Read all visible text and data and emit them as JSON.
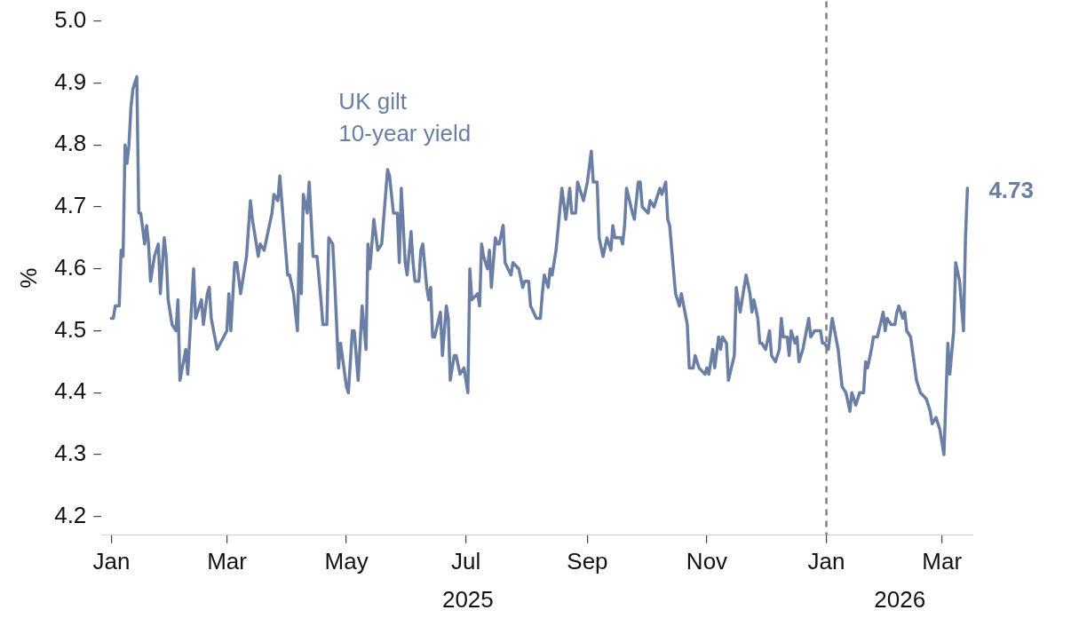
{
  "chart_data": {
    "type": "line",
    "ylabel": "%",
    "marker": "none",
    "xlim": [
      "2024-12-27",
      "2026-03-17"
    ],
    "ylim": [
      4.17,
      5.0
    ],
    "yticks": [
      4.2,
      4.3,
      4.4,
      4.5,
      4.6,
      4.7,
      4.8,
      4.9,
      {
        "value": 5,
        "label": "5.0"
      }
    ],
    "xticks": [
      {
        "value": "2025-01-01",
        "label": "Jan"
      },
      {
        "value": "2025-03-01",
        "label": "Mar"
      },
      {
        "value": "2025-05-01",
        "label": "May"
      },
      {
        "value": "2025-07-01",
        "label": "Jul"
      },
      {
        "value": "2025-09-01",
        "label": "Sep"
      },
      {
        "value": "2025-11-01",
        "label": "Nov"
      },
      {
        "value": "2026-01-01",
        "label": "Jan"
      },
      {
        "value": "2026-03-01",
        "label": "Mar"
      }
    ],
    "ref_lines": [
      {
        "axis": "x",
        "value": "2026-01-01",
        "color": "#808080",
        "line_style": "dashed"
      }
    ],
    "annotations": [
      "2025",
      "2026",
      {
        "text": "4.73",
        "x": "2026-03-14",
        "y": 4.73
      }
    ],
    "series": [
      {
        "name": "UK gilt\n10-year yield",
        "color": "#6a7fa3",
        "x": [
          "2025-01-01",
          "2025-01-02",
          "2025-01-03",
          "2025-01-05",
          "2025-01-06",
          "2025-01-07",
          "2025-01-08",
          "2025-01-09",
          "2025-01-10",
          "2025-01-11",
          "2025-01-12",
          "2025-01-14",
          "2025-01-15",
          "2025-01-16",
          "2025-01-18",
          "2025-01-19",
          "2025-01-20",
          "2025-01-21",
          "2025-01-23",
          "2025-01-25",
          "2025-01-26",
          "2025-01-28",
          "2025-01-29",
          "2025-01-30",
          "2025-02-01",
          "2025-02-03",
          "2025-02-04",
          "2025-02-05",
          "2025-02-08",
          "2025-02-09",
          "2025-02-12",
          "2025-02-13",
          "2025-02-16",
          "2025-02-17",
          "2025-02-19",
          "2025-02-20",
          "2025-02-21",
          "2025-02-24",
          "2025-03-01",
          "2025-03-02",
          "2025-03-03",
          "2025-03-05",
          "2025-03-06",
          "2025-03-08",
          "2025-03-11",
          "2025-03-13",
          "2025-03-14",
          "2025-03-17",
          "2025-03-18",
          "2025-03-20",
          "2025-03-22",
          "2025-03-24",
          "2025-03-25",
          "2025-03-27",
          "2025-03-28",
          "2025-04-01",
          "2025-04-02",
          "2025-04-04",
          "2025-04-06",
          "2025-04-07",
          "2025-04-08",
          "2025-04-09",
          "2025-04-11",
          "2025-04-12",
          "2025-04-14",
          "2025-04-16",
          "2025-04-18",
          "2025-04-19",
          "2025-04-21",
          "2025-04-22",
          "2025-04-24",
          "2025-04-25",
          "2025-04-27",
          "2025-04-28",
          "2025-05-01",
          "2025-05-02",
          "2025-05-04",
          "2025-05-05",
          "2025-05-07",
          "2025-05-09",
          "2025-05-11",
          "2025-05-12",
          "2025-05-13",
          "2025-05-15",
          "2025-05-17",
          "2025-05-19",
          "2025-05-20",
          "2025-05-22",
          "2025-05-23",
          "2025-05-25",
          "2025-05-27",
          "2025-05-28",
          "2025-05-29",
          "2025-05-31",
          "2025-06-01",
          "2025-06-03",
          "2025-06-04",
          "2025-06-05",
          "2025-06-07",
          "2025-06-08",
          "2025-06-09",
          "2025-06-11",
          "2025-06-12",
          "2025-06-13",
          "2025-06-14",
          "2025-06-15",
          "2025-06-18",
          "2025-06-19",
          "2025-06-21",
          "2025-06-22",
          "2025-06-23",
          "2025-06-25",
          "2025-06-26",
          "2025-06-28",
          "2025-06-30",
          "2025-07-02",
          "2025-07-03",
          "2025-07-04",
          "2025-07-07",
          "2025-07-08",
          "2025-07-09",
          "2025-07-10",
          "2025-07-12",
          "2025-07-13",
          "2025-07-14",
          "2025-07-16",
          "2025-07-17",
          "2025-07-18",
          "2025-07-20",
          "2025-07-21",
          "2025-07-24",
          "2025-07-25",
          "2025-07-28",
          "2025-07-30",
          "2025-07-31",
          "2025-08-02",
          "2025-08-03",
          "2025-08-06",
          "2025-08-08",
          "2025-08-09",
          "2025-08-10",
          "2025-08-12",
          "2025-08-13",
          "2025-08-14",
          "2025-08-16",
          "2025-08-19",
          "2025-08-21",
          "2025-08-23",
          "2025-08-24",
          "2025-08-26",
          "2025-08-27",
          "2025-08-30",
          "2025-09-01",
          "2025-09-03",
          "2025-09-04",
          "2025-09-06",
          "2025-09-07",
          "2025-09-09",
          "2025-09-11",
          "2025-09-13",
          "2025-09-14",
          "2025-09-15",
          "2025-09-18",
          "2025-09-19",
          "2025-09-20",
          "2025-09-21",
          "2025-09-24",
          "2025-09-25",
          "2025-09-27",
          "2025-09-28",
          "2025-09-29",
          "2025-10-02",
          "2025-10-03",
          "2025-10-05",
          "2025-10-08",
          "2025-10-09",
          "2025-10-11",
          "2025-10-12",
          "2025-10-13",
          "2025-10-16",
          "2025-10-18",
          "2025-10-19",
          "2025-10-22",
          "2025-10-23",
          "2025-10-25",
          "2025-10-26",
          "2025-10-28",
          "2025-10-31",
          "2025-11-01",
          "2025-11-02",
          "2025-11-04",
          "2025-11-05",
          "2025-11-07",
          "2025-11-08",
          "2025-11-09",
          "2025-11-11",
          "2025-11-12",
          "2025-11-15",
          "2025-11-16",
          "2025-11-18",
          "2025-11-19",
          "2025-11-21",
          "2025-11-23",
          "2025-11-24",
          "2025-11-25",
          "2025-11-27",
          "2025-11-28",
          "2025-11-29",
          "2025-12-01",
          "2025-12-03",
          "2025-12-04",
          "2025-12-06",
          "2025-12-08",
          "2025-12-09",
          "2025-12-10",
          "2025-12-12",
          "2025-12-13",
          "2025-12-14",
          "2025-12-16",
          "2025-12-17",
          "2025-12-18",
          "2025-12-20",
          "2025-12-23",
          "2025-12-24",
          "2025-12-26",
          "2025-12-29",
          "2025-12-30",
          "2025-12-31",
          "2026-01-02",
          "2026-01-04",
          "2026-01-07",
          "2026-01-09",
          "2026-01-11",
          "2026-01-13",
          "2026-01-14",
          "2026-01-16",
          "2026-01-18",
          "2026-01-20",
          "2026-01-21",
          "2026-01-22",
          "2026-01-24",
          "2026-01-25",
          "2026-01-27",
          "2026-01-30",
          "2026-01-31",
          "2026-02-01",
          "2026-02-03",
          "2026-02-05",
          "2026-02-06",
          "2026-02-07",
          "2026-02-09",
          "2026-02-10",
          "2026-02-11",
          "2026-02-13",
          "2026-02-16",
          "2026-02-17",
          "2026-02-18",
          "2026-02-21",
          "2026-02-23",
          "2026-02-24",
          "2026-02-26",
          "2026-02-28",
          "2026-03-02",
          "2026-03-04",
          "2026-03-05",
          "2026-03-07",
          "2026-03-08",
          "2026-03-10",
          "2026-03-12",
          "2026-03-13",
          "2026-03-14"
        ],
        "values": [
          4.52,
          4.52,
          4.54,
          4.54,
          4.63,
          4.62,
          4.8,
          4.77,
          4.8,
          4.86,
          4.89,
          4.91,
          4.69,
          4.69,
          4.64,
          4.67,
          4.64,
          4.58,
          4.62,
          4.64,
          4.56,
          4.65,
          4.62,
          4.55,
          4.51,
          4.5,
          4.55,
          4.42,
          4.47,
          4.43,
          4.6,
          4.52,
          4.55,
          4.51,
          4.56,
          4.57,
          4.52,
          4.47,
          4.5,
          4.56,
          4.5,
          4.61,
          4.61,
          4.56,
          4.62,
          4.71,
          4.68,
          4.62,
          4.64,
          4.63,
          4.66,
          4.69,
          4.72,
          4.71,
          4.75,
          4.59,
          4.59,
          4.56,
          4.5,
          4.64,
          4.56,
          4.72,
          4.69,
          4.74,
          4.62,
          4.62,
          4.55,
          4.51,
          4.51,
          4.65,
          4.64,
          4.58,
          4.44,
          4.48,
          4.41,
          4.4,
          4.5,
          4.5,
          4.42,
          4.54,
          4.47,
          4.64,
          4.6,
          4.68,
          4.63,
          4.64,
          4.68,
          4.76,
          4.75,
          4.69,
          4.69,
          4.61,
          4.73,
          4.61,
          4.59,
          4.66,
          4.61,
          4.58,
          4.58,
          4.63,
          4.64,
          4.57,
          4.55,
          4.57,
          4.49,
          4.49,
          4.53,
          4.46,
          4.54,
          4.52,
          4.42,
          4.46,
          4.46,
          4.43,
          4.44,
          4.4,
          4.6,
          4.55,
          4.56,
          4.54,
          4.64,
          4.62,
          4.6,
          4.63,
          4.57,
          4.65,
          4.64,
          4.64,
          4.67,
          4.61,
          4.59,
          4.61,
          4.6,
          4.57,
          4.58,
          4.58,
          4.54,
          4.52,
          4.52,
          4.56,
          4.59,
          4.57,
          4.6,
          4.59,
          4.63,
          4.73,
          4.68,
          4.73,
          4.69,
          4.69,
          4.74,
          4.71,
          4.74,
          4.79,
          4.74,
          4.74,
          4.65,
          4.62,
          4.65,
          4.63,
          4.67,
          4.65,
          4.65,
          4.64,
          4.67,
          4.73,
          4.69,
          4.68,
          4.74,
          4.74,
          4.7,
          4.69,
          4.71,
          4.7,
          4.73,
          4.72,
          4.74,
          4.68,
          4.67,
          4.56,
          4.54,
          4.56,
          4.51,
          4.44,
          4.44,
          4.46,
          4.44,
          4.43,
          4.44,
          4.43,
          4.47,
          4.44,
          4.49,
          4.47,
          4.49,
          4.48,
          4.42,
          4.46,
          4.57,
          4.53,
          4.55,
          4.59,
          4.56,
          4.53,
          4.55,
          4.52,
          4.48,
          4.48,
          4.47,
          4.5,
          4.46,
          4.45,
          4.47,
          4.52,
          4.49,
          4.49,
          4.46,
          4.5,
          4.48,
          4.49,
          4.45,
          4.47,
          4.52,
          4.49,
          4.5,
          4.5,
          4.48,
          4.48,
          4.47,
          4.52,
          4.47,
          4.41,
          4.4,
          4.37,
          4.4,
          4.38,
          4.4,
          4.4,
          4.45,
          4.44,
          4.47,
          4.49,
          4.49,
          4.53,
          4.5,
          4.52,
          4.51,
          4.51,
          4.53,
          4.54,
          4.52,
          4.53,
          4.5,
          4.49,
          4.42,
          4.41,
          4.4,
          4.39,
          4.37,
          4.35,
          4.36,
          4.34,
          4.3,
          4.48,
          4.43,
          4.5,
          4.61,
          4.58,
          4.5,
          4.65,
          4.73
        ]
      }
    ]
  }
}
